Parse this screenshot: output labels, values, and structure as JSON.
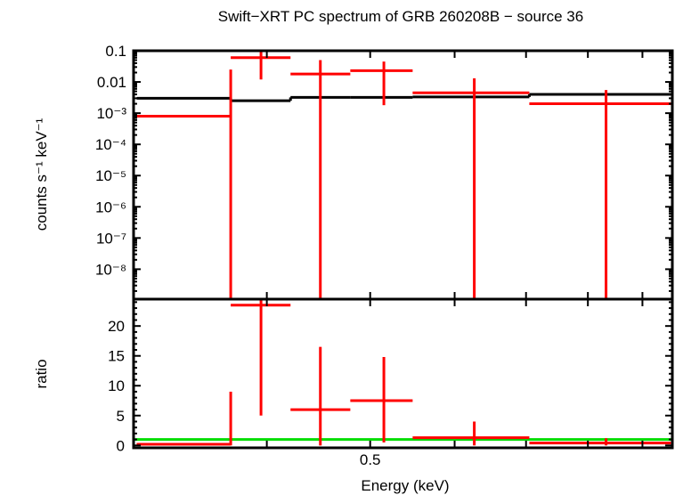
{
  "chart_data": [
    {
      "type": "scatter",
      "title": "Swift−XRT PC spectrum of GRB 260208B − source 36",
      "ylabel": "counts s⁻¹ keV⁻¹",
      "yscale": "log",
      "ylim": [
        1.1e-09,
        0.1
      ],
      "xscale": "log",
      "xlim": [
        0.3,
        0.96
      ],
      "yticks": [
        {
          "v": 0.1,
          "label": "0.1"
        },
        {
          "v": 0.01,
          "label": "0.01"
        },
        {
          "v": 0.001,
          "label": "10⁻³"
        },
        {
          "v": 0.0001,
          "label": "10⁻⁴"
        },
        {
          "v": 1e-05,
          "label": "10⁻⁵"
        },
        {
          "v": 1e-06,
          "label": "10⁻⁶"
        },
        {
          "v": 1e-07,
          "label": "10⁻⁷"
        },
        {
          "v": 1e-08,
          "label": "10⁻⁸"
        }
      ],
      "data_color": "#ff0000",
      "model_color": "#000000",
      "data": [
        {
          "xlo": 0.302,
          "x": 0.37,
          "xhi": 0.37,
          "y": 0.0008,
          "ylo": 1.1e-09,
          "yhi": 0.025
        },
        {
          "xlo": 0.37,
          "x": 0.395,
          "xhi": 0.421,
          "y": 0.06,
          "ylo": 0.012,
          "yhi": 0.1
        },
        {
          "xlo": 0.421,
          "x": 0.449,
          "xhi": 0.479,
          "y": 0.018,
          "ylo": 1.1e-09,
          "yhi": 0.05
        },
        {
          "xlo": 0.479,
          "x": 0.515,
          "xhi": 0.548,
          "y": 0.023,
          "ylo": 0.0018,
          "yhi": 0.045
        },
        {
          "xlo": 0.548,
          "x": 0.626,
          "xhi": 0.705,
          "y": 0.0045,
          "ylo": 1.1e-09,
          "yhi": 0.013
        },
        {
          "xlo": 0.705,
          "x": 0.832,
          "xhi": 0.957,
          "y": 0.002,
          "ylo": 1.1e-09,
          "yhi": 0.0055
        }
      ],
      "model": [
        0.003,
        0.0025,
        0.0032,
        0.0032,
        0.0033,
        0.004
      ]
    },
    {
      "type": "scatter",
      "xlabel": "Energy (keV)",
      "ylabel": "ratio",
      "ylim": [
        -0.4,
        24.5
      ],
      "xscale": "log",
      "xlim": [
        0.3,
        0.96
      ],
      "xticks": [
        {
          "v": 0.4,
          "label": ""
        },
        {
          "v": 0.5,
          "label": "0.5"
        },
        {
          "v": 0.6,
          "label": ""
        },
        {
          "v": 0.7,
          "label": ""
        },
        {
          "v": 0.8,
          "label": ""
        },
        {
          "v": 0.9,
          "label": ""
        }
      ],
      "yticks": [
        {
          "v": 0,
          "label": "0"
        },
        {
          "v": 5,
          "label": "5"
        },
        {
          "v": 10,
          "label": "10"
        },
        {
          "v": 15,
          "label": "15"
        },
        {
          "v": 20,
          "label": "20"
        }
      ],
      "reference_line": 1,
      "reference_color": "#00dd00",
      "data": [
        {
          "y": 0.2,
          "ylo": 0,
          "yhi": 9
        },
        {
          "y": 23.5,
          "ylo": 5,
          "yhi": 24.5
        },
        {
          "y": 6,
          "ylo": 0,
          "yhi": 16.5
        },
        {
          "y": 7.5,
          "ylo": 0.5,
          "yhi": 14.8
        },
        {
          "y": 1.3,
          "ylo": 0,
          "yhi": 4
        },
        {
          "y": 0.4,
          "ylo": 0,
          "yhi": 1.2
        }
      ]
    }
  ]
}
